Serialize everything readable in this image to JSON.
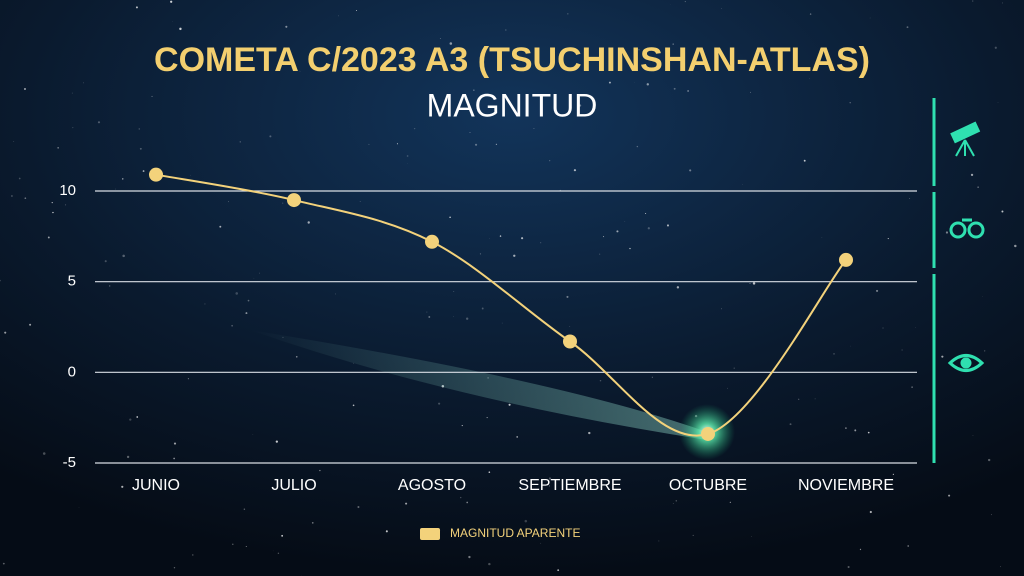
{
  "chart_data": {
    "type": "line",
    "title": "COMETA C/2023 A3 (TSUCHINSHAN-ATLAS)",
    "subtitle": "MAGNITUD",
    "categories": [
      "JUNIO",
      "JULIO",
      "AGOSTO",
      "SEPTIEMBRE",
      "OCTUBRE",
      "NOVIEMBRE"
    ],
    "series": [
      {
        "name": "MAGNITUD APARENTE",
        "color": "#f3d27b",
        "values": [
          10.9,
          9.5,
          7.2,
          1.7,
          -3.4,
          6.2
        ]
      }
    ],
    "ylim": [
      -5,
      10
    ],
    "yticks": [
      -5,
      0,
      5,
      10
    ],
    "grid": true
  }
}
